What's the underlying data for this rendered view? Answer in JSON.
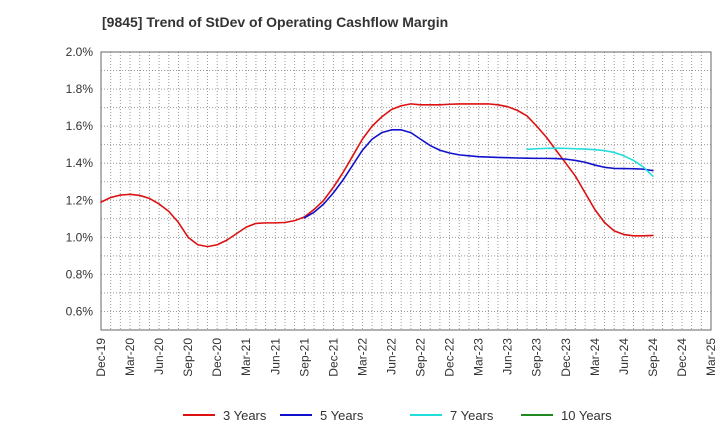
{
  "chart_data": {
    "type": "line",
    "title": "[9845]  Trend of StDev of Operating Cashflow Margin",
    "xlabel": "",
    "ylabel": "",
    "x_ticks": [
      "Dec-19",
      "Mar-20",
      "Jun-20",
      "Sep-20",
      "Dec-20",
      "Mar-21",
      "Jun-21",
      "Sep-21",
      "Dec-21",
      "Mar-22",
      "Jun-22",
      "Sep-22",
      "Dec-22",
      "Mar-23",
      "Jun-23",
      "Sep-23",
      "Dec-23",
      "Mar-24",
      "Jun-24",
      "Sep-24",
      "Dec-24",
      "Mar-25"
    ],
    "y_ticks": [
      "0.6%",
      "0.8%",
      "1.0%",
      "1.2%",
      "1.4%",
      "1.6%",
      "1.8%",
      "2.0%"
    ],
    "ylim": [
      0.5,
      2.0
    ],
    "grid": true,
    "legend_position": "bottom",
    "series": [
      {
        "name": "3 Years",
        "color": "#dd1111",
        "x": [
          "Dec-19",
          "Jan-20",
          "Feb-20",
          "Mar-20",
          "Apr-20",
          "May-20",
          "Jun-20",
          "Jul-20",
          "Aug-20",
          "Sep-20",
          "Oct-20",
          "Nov-20",
          "Dec-20",
          "Jan-21",
          "Feb-21",
          "Mar-21",
          "Apr-21",
          "May-21",
          "Jun-21",
          "Jul-21",
          "Aug-21",
          "Sep-21",
          "Oct-21",
          "Nov-21",
          "Dec-21",
          "Jan-22",
          "Feb-22",
          "Mar-22",
          "Apr-22",
          "May-22",
          "Jun-22",
          "Jul-22",
          "Aug-22",
          "Sep-22",
          "Oct-22",
          "Nov-22",
          "Dec-22",
          "Jan-23",
          "Feb-23",
          "Mar-23",
          "Apr-23",
          "May-23",
          "Jun-23",
          "Jul-23",
          "Aug-23",
          "Sep-23",
          "Oct-23",
          "Nov-23",
          "Dec-23",
          "Jan-24",
          "Feb-24",
          "Mar-24",
          "Apr-24",
          "May-24",
          "Jun-24",
          "Jul-24",
          "Aug-24",
          "Sep-24"
        ],
        "values": [
          1.19,
          1.215,
          1.228,
          1.232,
          1.226,
          1.21,
          1.18,
          1.14,
          1.08,
          1.0,
          0.96,
          0.95,
          0.96,
          0.985,
          1.02,
          1.055,
          1.075,
          1.078,
          1.078,
          1.08,
          1.09,
          1.11,
          1.15,
          1.2,
          1.27,
          1.35,
          1.44,
          1.53,
          1.6,
          1.65,
          1.69,
          1.71,
          1.72,
          1.715,
          1.715,
          1.715,
          1.718,
          1.72,
          1.72,
          1.72,
          1.72,
          1.715,
          1.705,
          1.685,
          1.655,
          1.6,
          1.54,
          1.47,
          1.4,
          1.33,
          1.24,
          1.15,
          1.08,
          1.035,
          1.015,
          1.008,
          1.008,
          1.01
        ]
      },
      {
        "name": "5 Years",
        "color": "#1111cc",
        "x": [
          "Sep-21",
          "Oct-21",
          "Nov-21",
          "Dec-21",
          "Jan-22",
          "Feb-22",
          "Mar-22",
          "Apr-22",
          "May-22",
          "Jun-22",
          "Jul-22",
          "Aug-22",
          "Sep-22",
          "Oct-22",
          "Nov-22",
          "Dec-22",
          "Jan-23",
          "Feb-23",
          "Mar-23",
          "Apr-23",
          "May-23",
          "Jun-23",
          "Jul-23",
          "Aug-23",
          "Sep-23",
          "Oct-23",
          "Nov-23",
          "Dec-23",
          "Jan-24",
          "Feb-24",
          "Mar-24",
          "Apr-24",
          "May-24",
          "Jun-24",
          "Jul-24",
          "Aug-24",
          "Sep-24"
        ],
        "values": [
          1.105,
          1.135,
          1.18,
          1.24,
          1.31,
          1.39,
          1.47,
          1.53,
          1.565,
          1.58,
          1.58,
          1.565,
          1.53,
          1.495,
          1.47,
          1.455,
          1.445,
          1.44,
          1.435,
          1.433,
          1.431,
          1.43,
          1.428,
          1.427,
          1.426,
          1.426,
          1.425,
          1.422,
          1.415,
          1.405,
          1.39,
          1.378,
          1.372,
          1.371,
          1.37,
          1.368,
          1.36
        ]
      },
      {
        "name": "7 Years",
        "color": "#22dddd",
        "x": [
          "Aug-23",
          "Sep-23",
          "Oct-23",
          "Nov-23",
          "Dec-23",
          "Jan-24",
          "Feb-24",
          "Mar-24",
          "Apr-24",
          "May-24",
          "Jun-24",
          "Jul-24",
          "Aug-24",
          "Sep-24"
        ],
        "values": [
          1.475,
          1.478,
          1.48,
          1.481,
          1.48,
          1.478,
          1.476,
          1.473,
          1.468,
          1.458,
          1.44,
          1.415,
          1.38,
          1.33
        ]
      },
      {
        "name": "10 Years",
        "color": "#228822",
        "x": [],
        "values": []
      }
    ]
  }
}
